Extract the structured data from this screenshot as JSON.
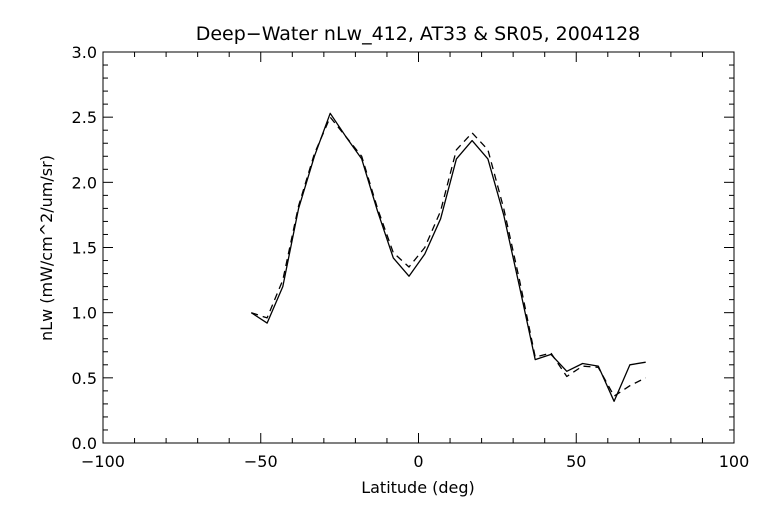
{
  "chart_data": {
    "type": "line",
    "title": "Deep−Water nLw_412, AT33 & SR05, 2004128",
    "xlabel": "Latitude (deg)",
    "ylabel": "nLw (mW/cm^2/um/sr)",
    "xlim": [
      -100,
      100
    ],
    "ylim": [
      0.0,
      3.0
    ],
    "xticks": [
      "−100",
      "−50",
      "0",
      "50",
      "100"
    ],
    "yticks": [
      "0.0",
      "0.5",
      "1.0",
      "1.5",
      "2.0",
      "2.5",
      "3.0"
    ],
    "grid": false,
    "legend": "none",
    "colors": {
      "line": "#000000",
      "axes": "#000000",
      "background": "#ffffff"
    },
    "series": [
      {
        "style": "solid",
        "x": [
          -53,
          -48,
          -43,
          -38,
          -33,
          -28,
          -23,
          -18,
          -13,
          -8,
          -3,
          2,
          7,
          12,
          17,
          22,
          27,
          32,
          37,
          42,
          47,
          52,
          57,
          62,
          67,
          72
        ],
        "y": [
          1.0,
          0.92,
          1.2,
          1.8,
          2.2,
          2.53,
          2.35,
          2.18,
          1.78,
          1.42,
          1.28,
          1.45,
          1.72,
          2.18,
          2.32,
          2.18,
          1.75,
          1.2,
          0.64,
          0.68,
          0.55,
          0.61,
          0.59,
          0.32,
          0.6,
          0.62
        ]
      },
      {
        "style": "dashed",
        "x": [
          -53,
          -48,
          -43,
          -38,
          -33,
          -28,
          -23,
          -18,
          -13,
          -8,
          -3,
          2,
          7,
          12,
          17,
          22,
          27,
          32,
          37,
          42,
          47,
          52,
          57,
          62,
          67,
          72
        ],
        "y": [
          1.0,
          0.96,
          1.25,
          1.82,
          2.22,
          2.5,
          2.35,
          2.2,
          1.8,
          1.46,
          1.35,
          1.5,
          1.78,
          2.25,
          2.38,
          2.25,
          1.8,
          1.25,
          0.66,
          0.69,
          0.51,
          0.59,
          0.58,
          0.36,
          0.44,
          0.5
        ]
      }
    ]
  }
}
